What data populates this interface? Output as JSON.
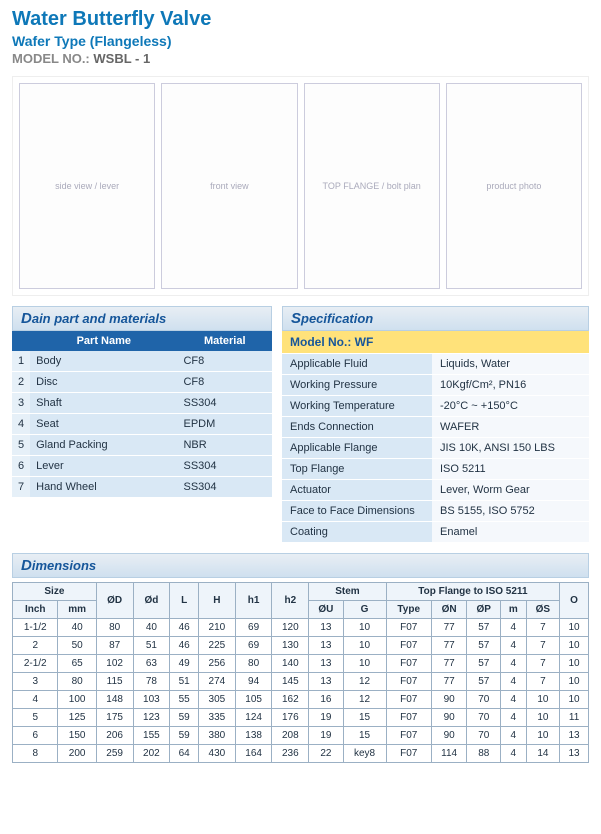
{
  "header": {
    "title": "Water Butterfly Valve",
    "subtitle": "Wafer Type (Flangeless)",
    "model_label": "MODEL NO.:",
    "model_value": "WSBL - 1"
  },
  "diagrams": {
    "side_label": "side view / lever",
    "front_label": "front view",
    "flange_label": "TOP FLANGE / bolt plan",
    "photo_label": "product photo"
  },
  "materials": {
    "section": "Dain part and materials",
    "col_part": "Part Name",
    "col_mat": "Material",
    "rows": [
      {
        "n": "1",
        "part": "Body",
        "mat": "CF8"
      },
      {
        "n": "2",
        "part": "Disc",
        "mat": "CF8"
      },
      {
        "n": "3",
        "part": "Shaft",
        "mat": "SS304"
      },
      {
        "n": "4",
        "part": "Seat",
        "mat": "EPDM"
      },
      {
        "n": "5",
        "part": "Gland Packing",
        "mat": "NBR"
      },
      {
        "n": "6",
        "part": "Lever",
        "mat": "SS304"
      },
      {
        "n": "7",
        "part": "Hand Wheel",
        "mat": "SS304"
      }
    ]
  },
  "spec": {
    "section": "Specification",
    "model_row": "Model No.: WF",
    "rows": [
      {
        "k": "Applicable Fluid",
        "v": "Liquids, Water"
      },
      {
        "k": "Working Pressure",
        "v": "10Kgf/Cm², PN16"
      },
      {
        "k": "Working Temperature",
        "v": "-20°C ~ +150°C"
      },
      {
        "k": "Ends Connection",
        "v": "WAFER"
      },
      {
        "k": "Applicable Flange",
        "v": "JIS 10K, ANSI 150 LBS"
      },
      {
        "k": "Top Flange",
        "v": "ISO 5211"
      },
      {
        "k": "Actuator",
        "v": "Lever, Worm Gear"
      },
      {
        "k": "Face to Face Dimensions",
        "v": "BS 5155, ISO 5752"
      },
      {
        "k": "Coating",
        "v": "Enamel"
      }
    ]
  },
  "dims": {
    "section": "Dimensions",
    "header_groups": {
      "size": "Size",
      "stem": "Stem",
      "topflange": "Top Flange to ISO 5211"
    },
    "cols": [
      "Inch",
      "mm",
      "ØD",
      "Ød",
      "L",
      "H",
      "h1",
      "h2",
      "ØU",
      "G",
      "Type",
      "ØN",
      "ØP",
      "m",
      "ØS",
      "O"
    ],
    "rows": [
      [
        "1-1/2",
        "40",
        "80",
        "40",
        "46",
        "210",
        "69",
        "120",
        "13",
        "10",
        "F07",
        "77",
        "57",
        "4",
        "7",
        "10"
      ],
      [
        "2",
        "50",
        "87",
        "51",
        "46",
        "225",
        "69",
        "130",
        "13",
        "10",
        "F07",
        "77",
        "57",
        "4",
        "7",
        "10"
      ],
      [
        "2-1/2",
        "65",
        "102",
        "63",
        "49",
        "256",
        "80",
        "140",
        "13",
        "10",
        "F07",
        "77",
        "57",
        "4",
        "7",
        "10"
      ],
      [
        "3",
        "80",
        "115",
        "78",
        "51",
        "274",
        "94",
        "145",
        "13",
        "12",
        "F07",
        "77",
        "57",
        "4",
        "7",
        "10"
      ],
      [
        "4",
        "100",
        "148",
        "103",
        "55",
        "305",
        "105",
        "162",
        "16",
        "12",
        "F07",
        "90",
        "70",
        "4",
        "10",
        "10"
      ],
      [
        "5",
        "125",
        "175",
        "123",
        "59",
        "335",
        "124",
        "176",
        "19",
        "15",
        "F07",
        "90",
        "70",
        "4",
        "10",
        "11"
      ],
      [
        "6",
        "150",
        "206",
        "155",
        "59",
        "380",
        "138",
        "208",
        "19",
        "15",
        "F07",
        "90",
        "70",
        "4",
        "10",
        "13"
      ],
      [
        "8",
        "200",
        "259",
        "202",
        "64",
        "430",
        "164",
        "236",
        "22",
        "key8",
        "F07",
        "114",
        "88",
        "4",
        "14",
        "13"
      ]
    ]
  },
  "style": {
    "accent": "#0e78b8",
    "table_header_bg": "#1f64a9",
    "cell_bg": "#d9e8f5",
    "spec_highlight": "#ffe27a"
  }
}
